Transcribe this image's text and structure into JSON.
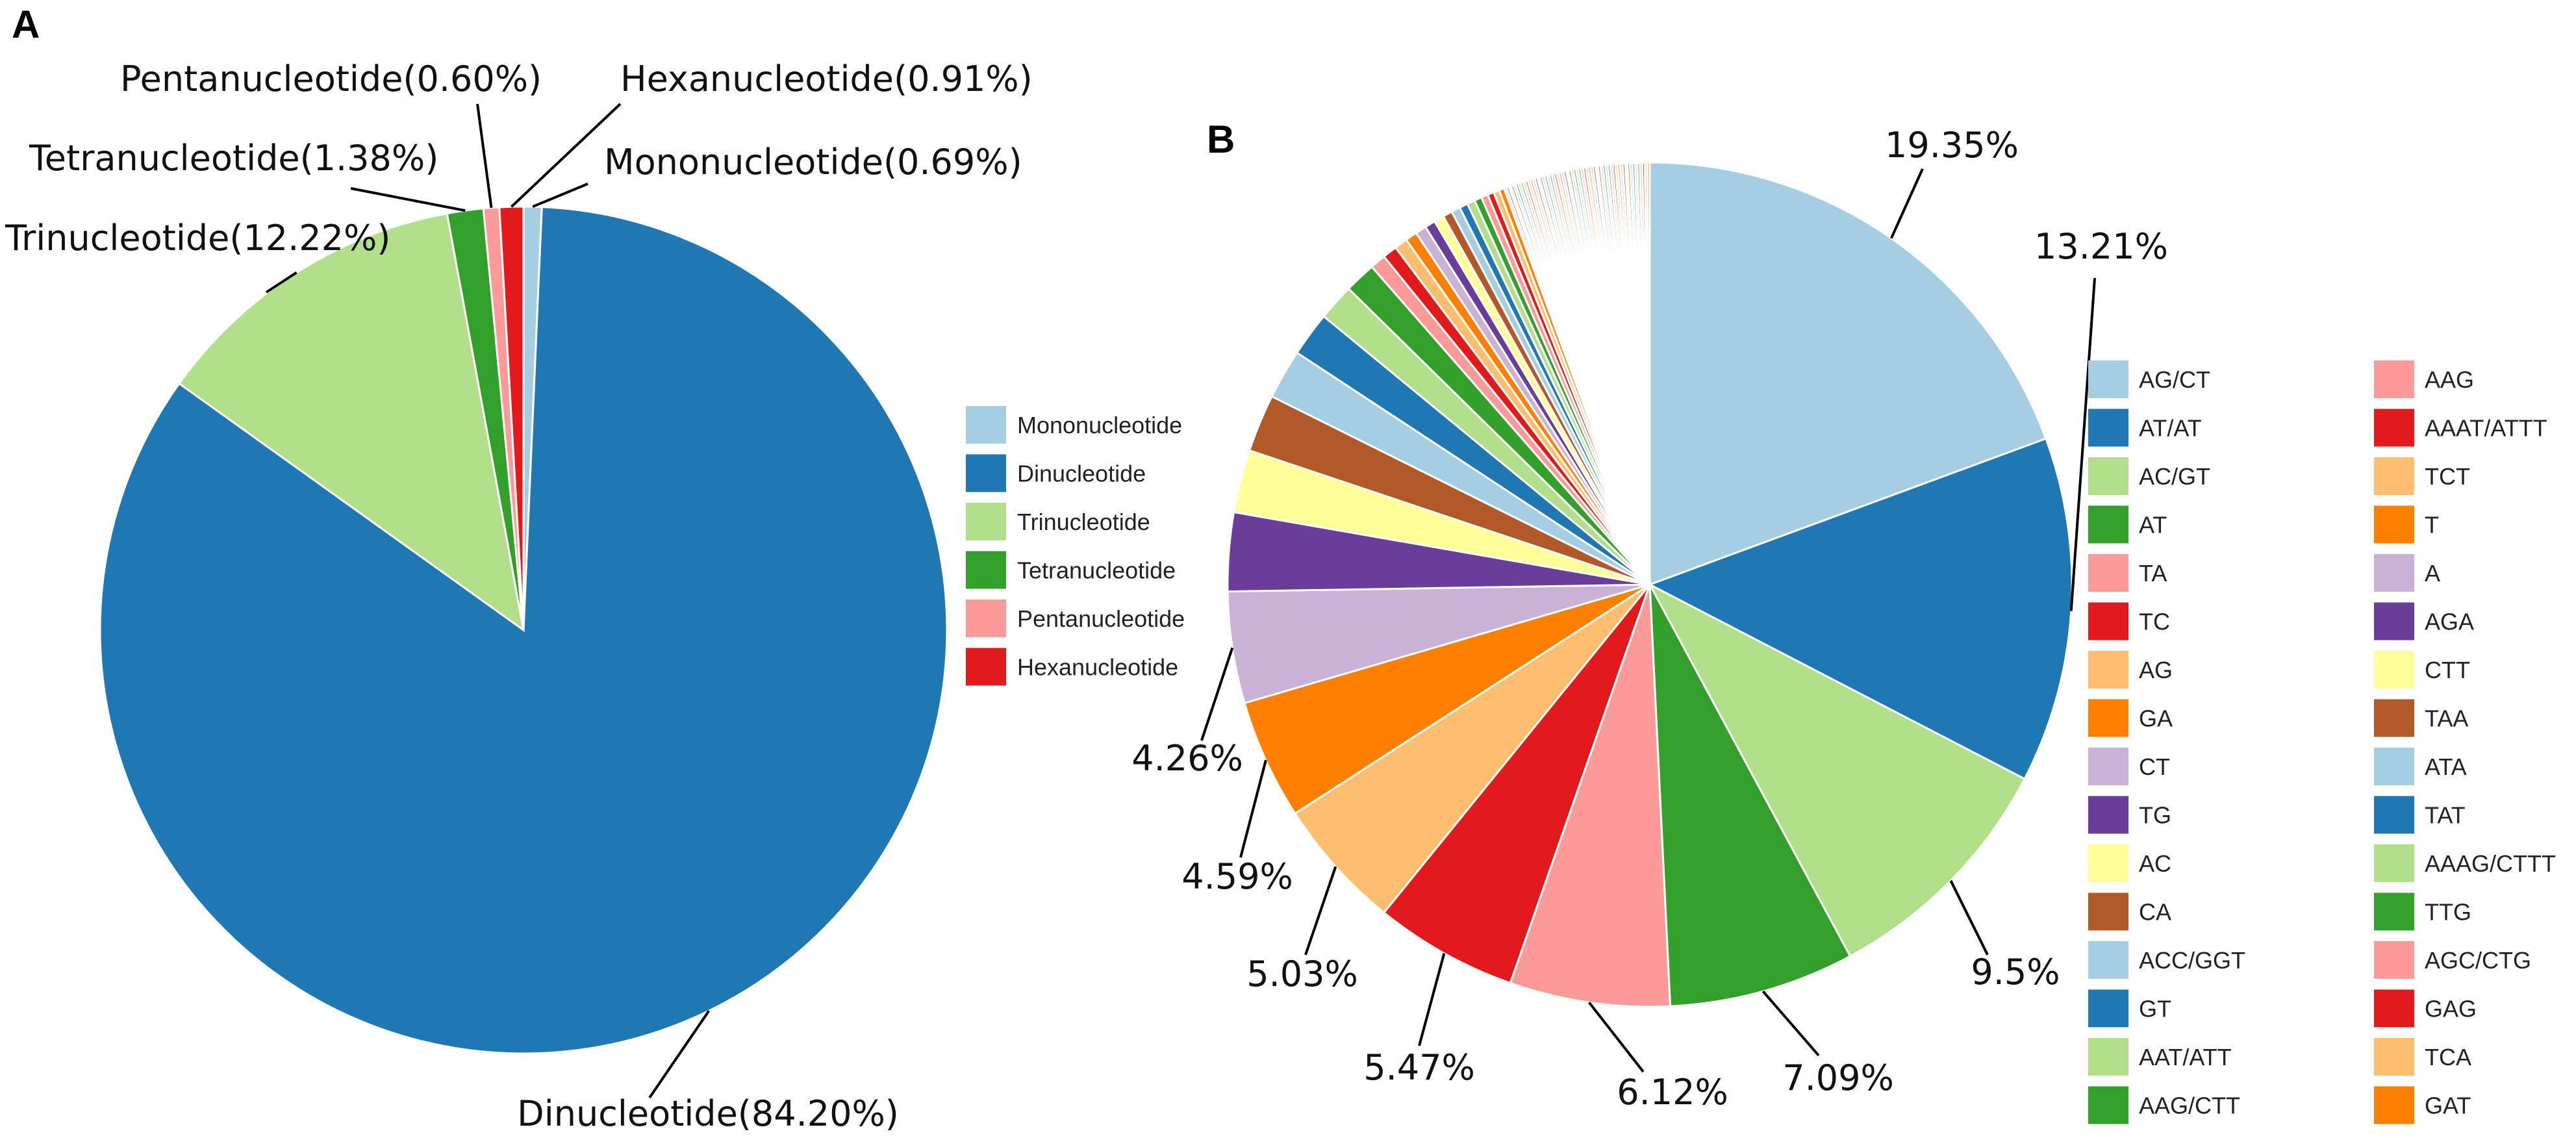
{
  "chart_data": [
    {
      "panel": "A",
      "type": "pie",
      "categories": [
        "Mononucleotide",
        "Dinucleotide",
        "Trinucleotide",
        "Tetranucleotide",
        "Pentanucleotide",
        "Hexanucleotide"
      ],
      "values": [
        0.69,
        84.2,
        12.22,
        1.38,
        0.6,
        0.91
      ],
      "colors": [
        "#a6cee3",
        "#1f78b4",
        "#b2df8a",
        "#33a02c",
        "#fb9a99",
        "#e31a1c"
      ],
      "slice_order": [
        "Mononucleotide",
        "Dinucleotide",
        "Trinucleotide",
        "Tetranucleotide",
        "Pentanucleotide",
        "Hexanucleotide"
      ],
      "direction": "clockwise from top",
      "labels": [
        "Mononucleotide(0.69%)",
        "Dinucleotide(84.20%)",
        "Trinucleotide(12.22%)",
        "Tetranucleotide(1.38%)",
        "Pentanucleotide(0.60%)",
        "Hexanucleotide(0.91%)"
      ],
      "legend": [
        "Mononucleotide",
        "Dinucleotide",
        "Trinucleotide",
        "Tetranucleotide",
        "Pentanucleotide",
        "Hexanucleotide"
      ],
      "legend_position": "right"
    },
    {
      "panel": "B",
      "type": "pie",
      "direction": "clockwise from top",
      "categories": [
        "AG/CT",
        "AT/AT",
        "AC/GT",
        "AT",
        "TA",
        "TC",
        "AG",
        "GA",
        "CT",
        "TG",
        "AC",
        "CA",
        "ACC/GGT",
        "GT",
        "AAT/ATT",
        "AAG/CTT",
        "AAG",
        "AAAT/ATTT",
        "TCT",
        "T",
        "A",
        "AGA",
        "CTT",
        "TAA",
        "ATA",
        "TAT",
        "AAAG/CTTT",
        "TTG",
        "AGC/CTG",
        "GAG",
        "TCA",
        "GAT"
      ],
      "values": [
        19.35,
        13.21,
        9.5,
        7.09,
        6.12,
        5.47,
        5.03,
        4.59,
        4.26,
        3.0,
        2.4,
        2.2,
        1.9,
        1.7,
        1.4,
        1.2,
        0.6,
        0.55,
        0.5,
        0.45,
        0.42,
        0.4,
        0.38,
        0.36,
        0.34,
        0.32,
        0.3,
        0.28,
        0.26,
        0.24,
        0.22,
        0.2
      ],
      "other_small_slices_value": 5.6,
      "colors": [
        "#a6cee3",
        "#1f78b4",
        "#b2df8a",
        "#33a02c",
        "#fb9a99",
        "#e31a1c",
        "#fdbf6f",
        "#ff7f00",
        "#cab2d6",
        "#6a3d9a",
        "#ffff99",
        "#b15928"
      ],
      "labels": [
        "19.35%",
        "13.21%",
        "9.5%",
        "7.09%",
        "6.12%",
        "5.47%",
        "5.03%",
        "4.59%",
        "4.26%"
      ],
      "legend": [
        "AG/CT",
        "AT/AT",
        "AC/GT",
        "AT",
        "TA",
        "TC",
        "AG",
        "GA",
        "CT",
        "TG",
        "AC",
        "CA",
        "ACC/GGT",
        "GT",
        "AAT/ATT",
        "AAG/CTT",
        "AAG",
        "AAAT/ATTT",
        "TCT",
        "T",
        "A",
        "AGA",
        "CTT",
        "TAA",
        "ATA",
        "TAT",
        "AAAG/CTTT",
        "TTG",
        "AGC/CTG",
        "GAG",
        "TCA",
        "GAT"
      ],
      "legend_position": "right, two columns"
    }
  ]
}
